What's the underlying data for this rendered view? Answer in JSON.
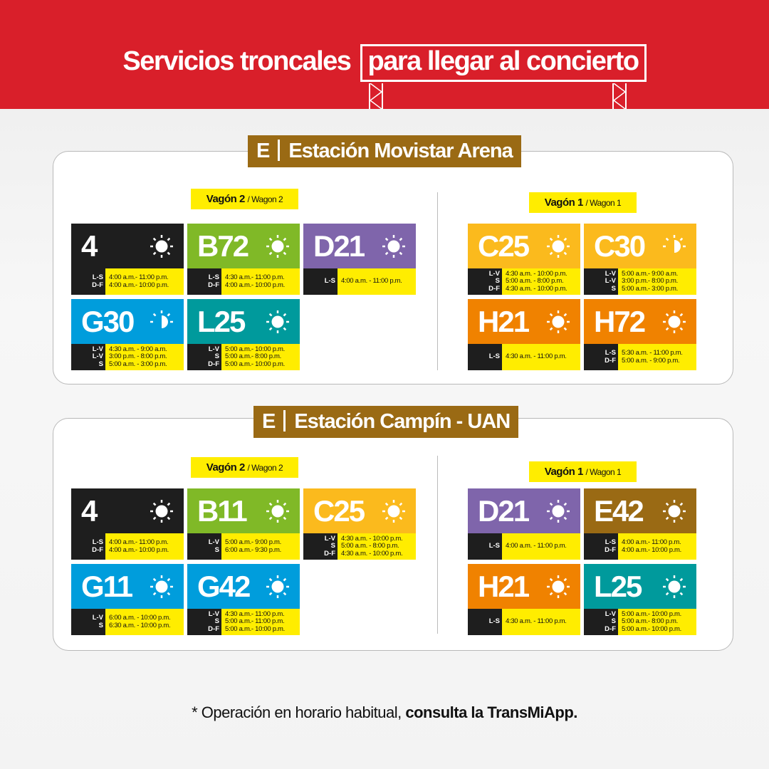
{
  "header": {
    "title_part1": "Servicios troncales",
    "title_part2": "para llegar al concierto",
    "bg_color": "#d91f2a"
  },
  "stations": [
    {
      "letter": "E",
      "name": "Estación Movistar  Arena",
      "wagons": [
        {
          "label": "Vagón 2",
          "sub": "/ Wagon 2",
          "cards": [
            {
              "route": "4",
              "color": "#1e1e1e",
              "icon": "sun-icon",
              "rows": [
                {
                  "days": "L-S",
                  "hours": "4:00 a.m.- 11:00 p.m."
                },
                {
                  "days": "D-F",
                  "hours": "4:00 a.m.- 10:00 p.m."
                }
              ]
            },
            {
              "route": "B72",
              "color": "#80b927",
              "icon": "sun-icon",
              "rows": [
                {
                  "days": "L-S",
                  "hours": "4:30 a.m.- 11:00 p.m."
                },
                {
                  "days": "D-F",
                  "hours": "4:00 a.m.- 10:00 p.m."
                }
              ]
            },
            {
              "route": "D21",
              "color": "#7f65ab",
              "icon": "sun-icon",
              "rows": [
                {
                  "days": "L-S",
                  "hours": "4:00 a.m. - 11:00 p.m."
                }
              ]
            },
            {
              "route": "G30",
              "color": "#009ddc",
              "icon": "half-sun-icon",
              "rows": [
                {
                  "days": "L-V",
                  "hours": "4:30 a.m. - 9:00 a.m."
                },
                {
                  "days": "L-V",
                  "hours": "3:00 p.m. - 8:00 p.m."
                },
                {
                  "days": "S",
                  "hours": "5:00 a.m. - 3:00 p.m."
                }
              ]
            },
            {
              "route": "L25",
              "color": "#009a9c",
              "icon": "sun-icon",
              "rows": [
                {
                  "days": "L-V",
                  "hours": "5:00 a.m.- 10:00 p.m."
                },
                {
                  "days": "S",
                  "hours": "5:00 a.m.- 8:00 p.m."
                },
                {
                  "days": "D-F",
                  "hours": "5:00 a.m.- 10:00 p.m."
                }
              ]
            }
          ]
        },
        {
          "label": "Vagón 1",
          "sub": "/ Wagon 1",
          "cards": [
            {
              "route": "C25",
              "color": "#fbba1d",
              "icon": "sun-icon",
              "rows": [
                {
                  "days": "L-V",
                  "hours": "4:30 a.m. - 10:00 p.m."
                },
                {
                  "days": "S",
                  "hours": "5:00 a.m. - 8:00 p.m."
                },
                {
                  "days": "D-F",
                  "hours": "4:30 a.m. - 10:00 p.m."
                }
              ]
            },
            {
              "route": "C30",
              "color": "#fbba1d",
              "icon": "half-sun-icon",
              "rows": [
                {
                  "days": "L-V",
                  "hours": "5:00 a.m.- 9:00 a.m."
                },
                {
                  "days": "L-V",
                  "hours": "3:00 p.m.- 8:00 p.m."
                },
                {
                  "days": "S",
                  "hours": "5:00 a.m.- 3:00 p.m."
                }
              ]
            },
            {
              "route": "H21",
              "color": "#f08200",
              "icon": "sun-icon",
              "rows": [
                {
                  "days": "L-S",
                  "hours": "4:30 a.m. - 11:00 p.m."
                }
              ]
            },
            {
              "route": "H72",
              "color": "#f08200",
              "icon": "sun-icon",
              "rows": [
                {
                  "days": "L-S",
                  "hours": "5:30 a.m. - 11:00 p.m."
                },
                {
                  "days": "D-F",
                  "hours": "5:00 a.m. -  9:00 p.m."
                }
              ]
            }
          ]
        }
      ]
    },
    {
      "letter": "E",
      "name": "Estación Campín - UAN",
      "wagons": [
        {
          "label": "Vagón 2",
          "sub": "/ Wagon 2",
          "cards": [
            {
              "route": "4",
              "color": "#1e1e1e",
              "icon": "sun-icon",
              "rows": [
                {
                  "days": "L-S",
                  "hours": "4:00 a.m.- 11:00 p.m."
                },
                {
                  "days": "D-F",
                  "hours": "4:00 a.m.- 10:00 p.m."
                }
              ]
            },
            {
              "route": "B11",
              "color": "#80b927",
              "icon": "sun-icon",
              "rows": [
                {
                  "days": "L-V",
                  "hours": "5:00 a.m.- 9:00 p.m."
                },
                {
                  "days": "S",
                  "hours": "6:00 a.m.- 9:30 p.m."
                }
              ]
            },
            {
              "route": "C25",
              "color": "#fbba1d",
              "icon": "sun-icon",
              "rows": [
                {
                  "days": "L-V",
                  "hours": "4:30 a.m. - 10:00 p.m."
                },
                {
                  "days": "S",
                  "hours": "5:00 a.m. - 8:00 p.m."
                },
                {
                  "days": "D-F",
                  "hours": "4:30 a.m. - 10:00 p.m."
                }
              ]
            },
            {
              "route": "G11",
              "color": "#009ddc",
              "icon": "sun-icon",
              "rows": [
                {
                  "days": "L-V",
                  "hours": "6:00 a.m. - 10:00 p.m."
                },
                {
                  "days": "S",
                  "hours": "6:30 a.m. - 10:00 p.m."
                }
              ]
            },
            {
              "route": "G42",
              "color": "#009ddc",
              "icon": "sun-icon",
              "rows": [
                {
                  "days": "L-V",
                  "hours": "4:30 a.m.- 11:00 p.m."
                },
                {
                  "days": "S",
                  "hours": "5:00 a.m.- 11:00 p.m."
                },
                {
                  "days": "D-F",
                  "hours": "5:00 a.m.- 10:00 p.m."
                }
              ]
            }
          ]
        },
        {
          "label": "Vagón 1",
          "sub": "/ Wagon 1",
          "cards": [
            {
              "route": "D21",
              "color": "#7f65ab",
              "icon": "sun-icon",
              "rows": [
                {
                  "days": "L-S",
                  "hours": "4:00 a.m. - 11:00 p.m."
                }
              ]
            },
            {
              "route": "E42",
              "color": "#9a6a14",
              "icon": "sun-icon",
              "rows": [
                {
                  "days": "L-S",
                  "hours": "4:00 a.m.- 11:00 p.m."
                },
                {
                  "days": "D-F",
                  "hours": "4:00 a.m.- 10:00 p.m."
                }
              ]
            },
            {
              "route": "H21",
              "color": "#f08200",
              "icon": "sun-icon",
              "rows": [
                {
                  "days": "L-S",
                  "hours": "4:30 a.m. - 11:00 p.m."
                }
              ]
            },
            {
              "route": "L25",
              "color": "#009a9c",
              "icon": "sun-icon",
              "rows": [
                {
                  "days": "L-V",
                  "hours": "5:00 a.m.- 10:00 p.m."
                },
                {
                  "days": "S",
                  "hours": "5:00 a.m.- 8:00 p.m."
                },
                {
                  "days": "D-F",
                  "hours": "5:00 a.m.- 10:00 p.m."
                }
              ]
            }
          ]
        }
      ]
    }
  ],
  "footer": {
    "text_regular": "* Operación en horario habitual, ",
    "text_bold": "consulta la TransMiApp."
  }
}
